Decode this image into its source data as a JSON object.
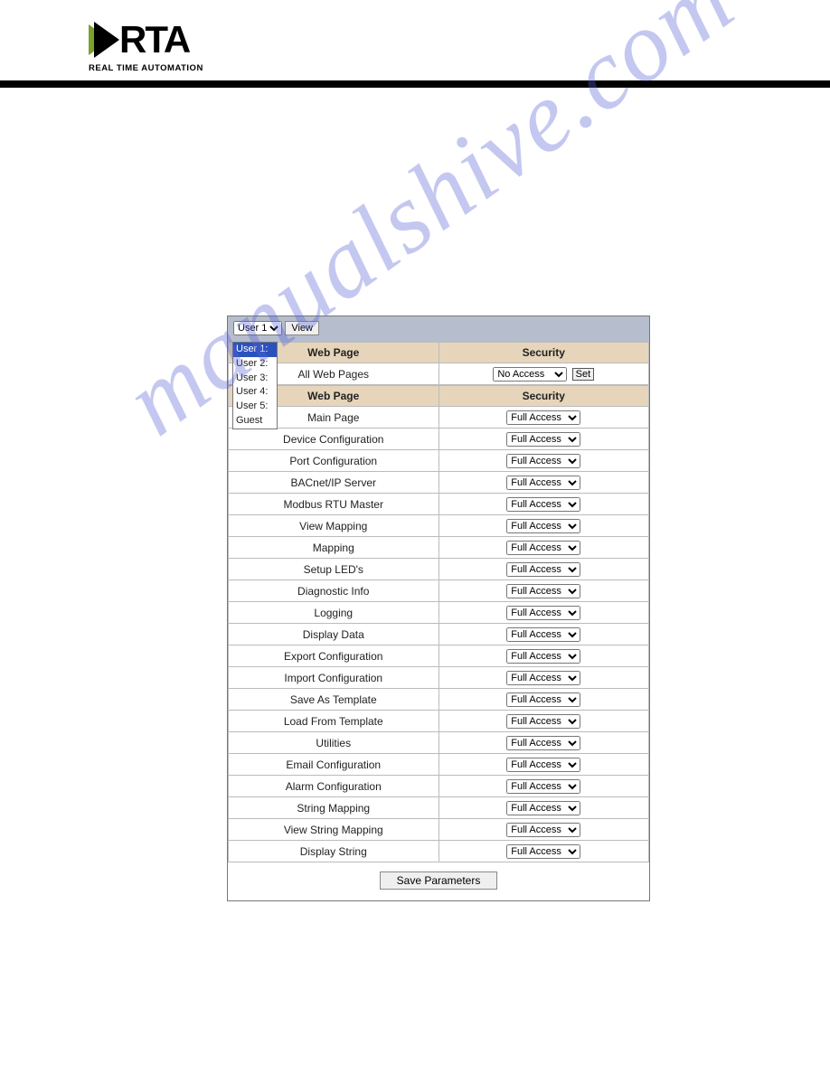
{
  "logo": {
    "short": "RTA",
    "sub": "REAL TIME AUTOMATION"
  },
  "watermark": "manualshive.com",
  "panel": {
    "user_select_value": "User 1:",
    "view_button": "View",
    "user_list": [
      "User 1:",
      "User 2:",
      "User 3:",
      "User 4:",
      "User 5:",
      "Guest"
    ],
    "user_list_selected_index": 0,
    "header1": {
      "page": "Web Page",
      "security": "Security"
    },
    "all_row": {
      "page": "All Web Pages",
      "security_value": "No Access",
      "set_button": "Set"
    },
    "header2": {
      "page": "Web Page",
      "security": "Security"
    },
    "rows": [
      {
        "page": "Main Page",
        "security": "Full Access"
      },
      {
        "page": "Device Configuration",
        "security": "Full Access"
      },
      {
        "page": "Port Configuration",
        "security": "Full Access"
      },
      {
        "page": "BACnet/IP Server",
        "security": "Full Access"
      },
      {
        "page": "Modbus RTU Master",
        "security": "Full Access"
      },
      {
        "page": "View Mapping",
        "security": "Full Access"
      },
      {
        "page": "Mapping",
        "security": "Full Access"
      },
      {
        "page": "Setup LED's",
        "security": "Full Access"
      },
      {
        "page": "Diagnostic Info",
        "security": "Full Access"
      },
      {
        "page": "Logging",
        "security": "Full Access"
      },
      {
        "page": "Display Data",
        "security": "Full Access"
      },
      {
        "page": "Export Configuration",
        "security": "Full Access"
      },
      {
        "page": "Import Configuration",
        "security": "Full Access"
      },
      {
        "page": "Save As Template",
        "security": "Full Access"
      },
      {
        "page": "Load From Template",
        "security": "Full Access"
      },
      {
        "page": "Utilities",
        "security": "Full Access"
      },
      {
        "page": "Email Configuration",
        "security": "Full Access"
      },
      {
        "page": "Alarm Configuration",
        "security": "Full Access"
      },
      {
        "page": "String Mapping",
        "security": "Full Access"
      },
      {
        "page": "View String Mapping",
        "security": "Full Access"
      },
      {
        "page": "Display String",
        "security": "Full Access"
      }
    ],
    "save_button": "Save Parameters"
  },
  "colors": {
    "header_row": "#e6d5bb",
    "panel_top": "#b6bdcd",
    "list_selected": "#2a52be",
    "watermark": "#5863d6",
    "border": "#bbbbbb"
  }
}
